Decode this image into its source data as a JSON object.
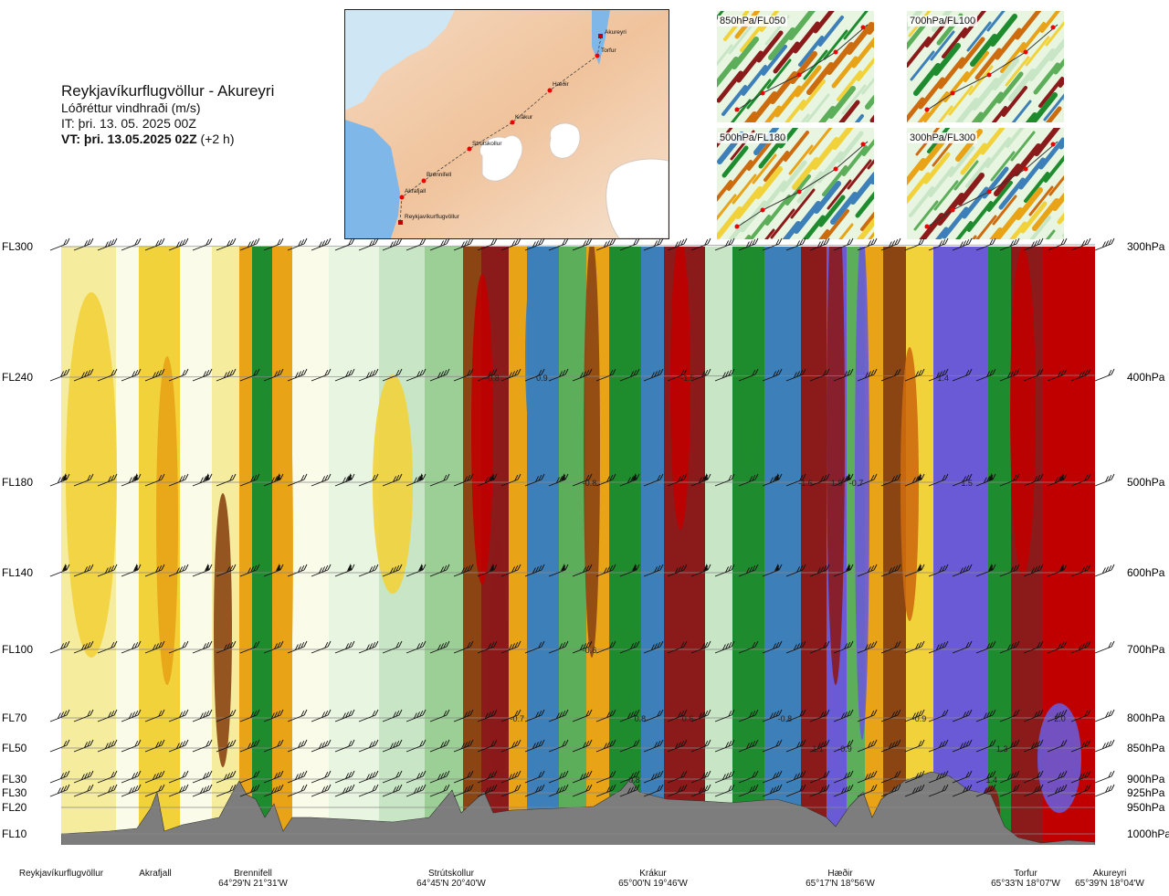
{
  "header": {
    "title": "Reykjavíkurflugvöllur - Akureyri",
    "subtitle": "Lóðréttur vindhraði (m/s)",
    "it": "IT: þri. 13. 05. 2025 00Z",
    "vt_bold": "VT: þri. 13.05.2025 02Z",
    "vt_rest": " (+2 h)"
  },
  "route_map": {
    "points": [
      "Akureyri",
      "Torfur",
      "Hæðir",
      "Krákur",
      "Strútskollur",
      "Brennifell",
      "Akrafjall",
      "Reykjavíkurflugvöllur"
    ]
  },
  "thumbnails": [
    {
      "label": "850hPa/FL050"
    },
    {
      "label": "700hPa/FL100"
    },
    {
      "label": "500hPa/FL180"
    },
    {
      "label": "300hPa/FL300"
    }
  ],
  "chart_data": {
    "type": "heatmap",
    "description_type": "vertical cross-section",
    "y_levels": [
      {
        "fl": "FL300",
        "hpa": "300hPa"
      },
      {
        "fl": "FL240",
        "hpa": "400hPa"
      },
      {
        "fl": "FL180",
        "hpa": "500hPa"
      },
      {
        "fl": "FL140",
        "hpa": "600hPa"
      },
      {
        "fl": "FL100",
        "hpa": "700hPa"
      },
      {
        "fl": "FL70",
        "hpa": "800hPa"
      },
      {
        "fl": "FL50",
        "hpa": "850hPa"
      },
      {
        "fl": "FL30",
        "hpa": "900hPa"
      },
      {
        "fl": "FL30",
        "hpa": "925hPa"
      },
      {
        "fl": "FL20",
        "hpa": "950hPa"
      },
      {
        "fl": "FL10",
        "hpa": "1000hPa"
      }
    ],
    "stations": [
      {
        "name": "Reykjavíkurflugvöllur",
        "coord": ""
      },
      {
        "name": "Akrafjall",
        "coord": ""
      },
      {
        "name": "Brennifell",
        "coord": "64°29'N 21°31'W"
      },
      {
        "name": "Strútskollur",
        "coord": "64°45'N 20°40'W"
      },
      {
        "name": "Krákur",
        "coord": "65°00'N 19°46'W"
      },
      {
        "name": "Hæðir",
        "coord": "65°17'N 18°56'W"
      },
      {
        "name": "Torfur",
        "coord": "65°33'N 18°07'W"
      },
      {
        "name": "Akureyri",
        "coord": "65°39'N 18°04'W"
      }
    ],
    "value_labels": [
      {
        "text": "-0.8",
        "level": "400hPa",
        "frac": 0.417
      },
      {
        "text": "0.9",
        "level": "400hPa",
        "frac": 0.465
      },
      {
        "text": "-1.5",
        "level": "400hPa",
        "frac": 0.606
      },
      {
        "text": "1.4",
        "level": "400hPa",
        "frac": 0.853
      },
      {
        "text": "-0.8",
        "level": "500hPa",
        "frac": 0.511
      },
      {
        "text": "-1.6",
        "level": "500hPa",
        "frac": 0.72
      },
      {
        "text": "1.8",
        "level": "500hPa",
        "frac": 0.75
      },
      {
        "text": "-0.7",
        "level": "500hPa",
        "frac": 0.769
      },
      {
        "text": "1.5",
        "level": "500hPa",
        "frac": 0.876
      },
      {
        "text": "-0.6",
        "level": "700hPa",
        "frac": 0.511
      },
      {
        "text": "-0.7",
        "level": "800hPa",
        "frac": 0.441
      },
      {
        "text": "0.8",
        "level": "800hPa",
        "frac": 0.56
      },
      {
        "text": "0.6",
        "level": "800hPa",
        "frac": 0.606
      },
      {
        "text": "-0.8",
        "level": "800hPa",
        "frac": 0.7
      },
      {
        "text": "-0.9",
        "level": "800hPa",
        "frac": 0.83
      },
      {
        "text": "2.0",
        "level": "800hPa",
        "frac": 0.966
      },
      {
        "text": "1.1",
        "level": "850hPa",
        "frac": 0.732
      },
      {
        "text": "-0.9",
        "level": "850hPa",
        "frac": 0.758
      },
      {
        "text": "1.3",
        "level": "850hPa",
        "frac": 0.91
      },
      {
        "text": "-0.8",
        "level": "900hPa",
        "frac": 0.553
      },
      {
        "text": "1.4",
        "level": "900hPa",
        "frac": 0.9
      }
    ]
  },
  "colors": {
    "terrain": "#7d7d7d",
    "scale": [
      "#c00000",
      "#8b1a1a",
      "#8b4513",
      "#cd6b0f",
      "#e8a317",
      "#f2d23a",
      "#f5ec9e",
      "#fafbe8",
      "#e8f5e0",
      "#c8e6c5",
      "#9ccf95",
      "#5cae5a",
      "#1e8c2e",
      "#3d7fb8",
      "#6a5ad6"
    ]
  }
}
